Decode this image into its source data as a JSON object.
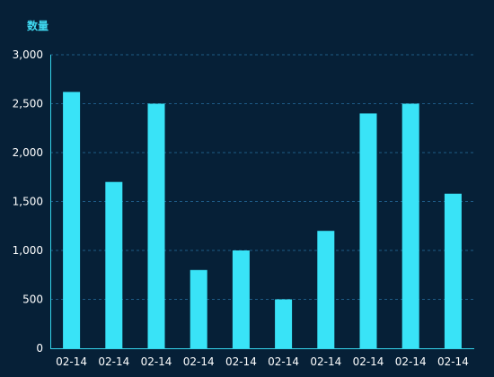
{
  "chart_data": {
    "type": "bar",
    "ylabel": "数量",
    "categories": [
      "02-14",
      "02-14",
      "02-14",
      "02-14",
      "02-14",
      "02-14",
      "02-14",
      "02-14",
      "02-14",
      "02-14"
    ],
    "values": [
      2620,
      1700,
      2500,
      800,
      1000,
      500,
      1200,
      2400,
      2500,
      1580
    ],
    "ylim": [
      0,
      3000
    ],
    "yticks": [
      {
        "value": 0,
        "label": "0"
      },
      {
        "value": 500,
        "label": "500"
      },
      {
        "value": 1000,
        "label": "1,000"
      },
      {
        "value": 1500,
        "label": "1,500"
      },
      {
        "value": 2000,
        "label": "2,000"
      },
      {
        "value": 2500,
        "label": "2,500"
      },
      {
        "value": 3000,
        "label": "3,000"
      }
    ],
    "grid": true,
    "colors": {
      "background": "#062037",
      "bar": "#39e3f7",
      "axis": "#35d6ec",
      "grid": "#1e5b86",
      "tick_text": "#ffffff",
      "ylabel_text": "#3fd8f0"
    }
  }
}
